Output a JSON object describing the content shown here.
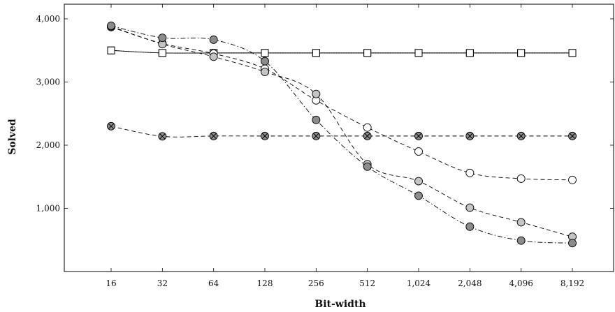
{
  "chart_data": {
    "type": "line",
    "title": "",
    "xlabel": "Bit-width",
    "ylabel": "Solved",
    "x_scale": "log2",
    "x": [
      16,
      32,
      64,
      128,
      256,
      512,
      1024,
      2048,
      4096,
      8192
    ],
    "x_tick_labels": [
      "16",
      "32",
      "64",
      "128",
      "256",
      "512",
      "1,024",
      "2,048",
      "4,096",
      "8,192"
    ],
    "ylim": [
      0,
      4150
    ],
    "y_ticks": [
      1000,
      2000,
      3000,
      4000
    ],
    "y_tick_labels": [
      "1,000",
      "2,000",
      "3,000",
      "4,000"
    ],
    "grid": false,
    "legend": "none",
    "series": [
      {
        "marker": "square-gray",
        "line": "solid",
        "values": [
          3500,
          3460,
          3460,
          3460,
          3460,
          3460,
          3460,
          3460,
          3460,
          3460
        ]
      },
      {
        "marker": "square-white",
        "line": "dotted",
        "values": [
          3500,
          3460,
          3460,
          3460,
          3460,
          3460,
          3460,
          3460,
          3460,
          3460
        ]
      },
      {
        "marker": "circle-cross",
        "line": "dashed",
        "values": [
          2300,
          2140,
          2145,
          2145,
          2145,
          2145,
          2145,
          2145,
          2145,
          2145
        ]
      },
      {
        "marker": "circle-white",
        "line": "dashed",
        "values": [
          3870,
          3610,
          3450,
          3210,
          2710,
          2280,
          1900,
          1560,
          1470,
          1450
        ]
      },
      {
        "marker": "circle-light",
        "line": "dashed",
        "values": [
          3880,
          3600,
          3400,
          3160,
          2810,
          1700,
          1430,
          1010,
          780,
          550
        ]
      },
      {
        "marker": "circle-dark",
        "line": "dashdot",
        "values": [
          3890,
          3700,
          3670,
          3330,
          2400,
          1660,
          1200,
          710,
          490,
          450
        ]
      }
    ],
    "colors": {
      "axis": "#000000",
      "dark_fill": "#8c8c8c",
      "light_fill": "#c4c4c4",
      "white_fill": "#ffffff"
    }
  }
}
